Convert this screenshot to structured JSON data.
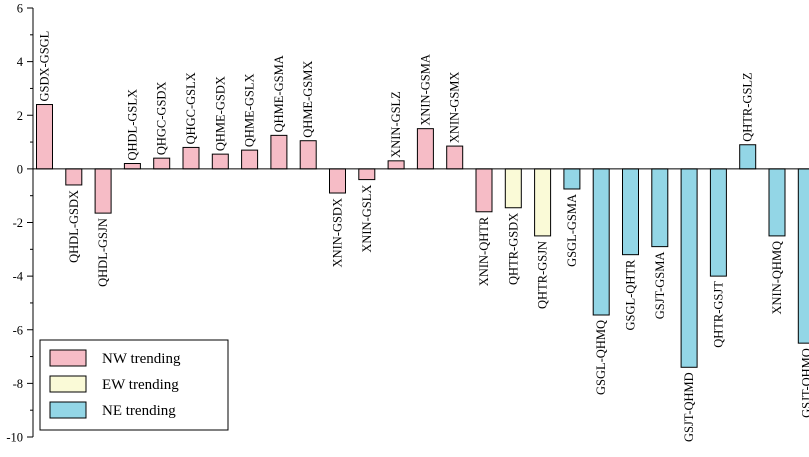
{
  "chart_data": {
    "type": "bar",
    "title": "",
    "xlabel": "",
    "ylabel": "",
    "ylim": [
      -10,
      6
    ],
    "yticks": [
      6,
      4,
      2,
      0,
      -2,
      -4,
      -6,
      -8,
      -10
    ],
    "grid": false,
    "legend_position": "bottom-left",
    "groups": [
      {
        "id": "nw",
        "name": "NW trending",
        "color": "#F6BCC6"
      },
      {
        "id": "ew",
        "name": "EW trending",
        "color": "#FAFAD7"
      },
      {
        "id": "ne",
        "name": "NE trending",
        "color": "#93D6E6"
      }
    ],
    "bars": [
      {
        "label": "GSDX-GSGL",
        "value": 2.4,
        "group": "nw"
      },
      {
        "label": "QHDL-GSDX",
        "value": -0.6,
        "group": "nw"
      },
      {
        "label": "QHDL-GSJN",
        "value": -1.65,
        "group": "nw"
      },
      {
        "label": "QHDL-GSLX",
        "value": 0.2,
        "group": "nw"
      },
      {
        "label": "QHGC-GSDX",
        "value": 0.4,
        "group": "nw"
      },
      {
        "label": "QHGC-GSLX",
        "value": 0.8,
        "group": "nw"
      },
      {
        "label": "QHME-GSDX",
        "value": 0.55,
        "group": "nw"
      },
      {
        "label": "QHME-GSLX",
        "value": 0.7,
        "group": "nw"
      },
      {
        "label": "QHME-GSMA",
        "value": 1.25,
        "group": "nw"
      },
      {
        "label": "QHME-GSMX",
        "value": 1.05,
        "group": "nw"
      },
      {
        "label": "XNIN-GSDX",
        "value": -0.9,
        "group": "nw"
      },
      {
        "label": "XNIN-GSLX",
        "value": -0.4,
        "group": "nw"
      },
      {
        "label": "XNIN-GSLZ",
        "value": 0.3,
        "group": "nw"
      },
      {
        "label": "XNIN-GSMA",
        "value": 1.5,
        "group": "nw"
      },
      {
        "label": "XNIN-GSMX",
        "value": 0.85,
        "group": "nw"
      },
      {
        "label": "XNIN-QHTR",
        "value": -1.6,
        "group": "nw"
      },
      {
        "label": "QHTR-GSDX",
        "value": -1.45,
        "group": "ew"
      },
      {
        "label": "QHTR-GSJN",
        "value": -2.5,
        "group": "ew"
      },
      {
        "label": "GSGL-GSMA",
        "value": -0.75,
        "group": "ne"
      },
      {
        "label": "GSGL-QHMQ",
        "value": -5.45,
        "group": "ne"
      },
      {
        "label": "GSGL-QHTR",
        "value": -3.2,
        "group": "ne"
      },
      {
        "label": "GSJT-GSMA",
        "value": -2.9,
        "group": "ne"
      },
      {
        "label": "GSJT-QHMD",
        "value": -7.4,
        "group": "ne"
      },
      {
        "label": "QHTR-GSJT",
        "value": -4.0,
        "group": "ne"
      },
      {
        "label": "QHTR-GSLZ",
        "value": 0.9,
        "group": "ne"
      },
      {
        "label": "XNIN-QHMQ",
        "value": -2.5,
        "group": "ne"
      },
      {
        "label": "GSJT-QHMQ",
        "value": -6.5,
        "group": "ne"
      }
    ]
  }
}
